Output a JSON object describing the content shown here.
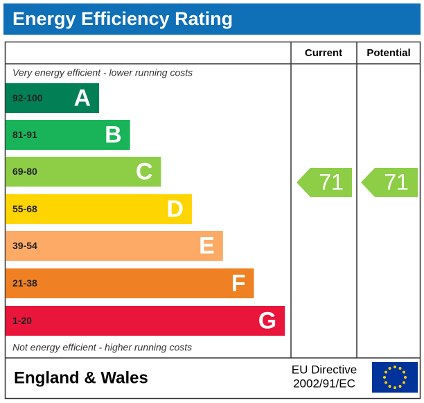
{
  "header": {
    "title": "Energy Efficiency Rating"
  },
  "columns": {
    "current": "Current",
    "potential": "Potential"
  },
  "top_note": "Very energy efficient - lower running costs",
  "bottom_note": "Not energy efficient - higher running costs",
  "bands": [
    {
      "range": "92-100",
      "letter": "A",
      "color": "#008054"
    },
    {
      "range": "81-91",
      "letter": "B",
      "color": "#19b459"
    },
    {
      "range": "69-80",
      "letter": "C",
      "color": "#8dce46"
    },
    {
      "range": "55-68",
      "letter": "D",
      "color": "#ffd500"
    },
    {
      "range": "39-54",
      "letter": "E",
      "color": "#fcaa65"
    },
    {
      "range": "21-38",
      "letter": "F",
      "color": "#ef8023"
    },
    {
      "range": "1-20",
      "letter": "G",
      "color": "#e9153b"
    }
  ],
  "current": {
    "value": "71",
    "color": "#8dce46"
  },
  "potential": {
    "value": "71",
    "color": "#8dce46"
  },
  "footer": {
    "region": "England & Wales",
    "directive_line1": "EU Directive",
    "directive_line2": "2002/91/EC"
  }
}
